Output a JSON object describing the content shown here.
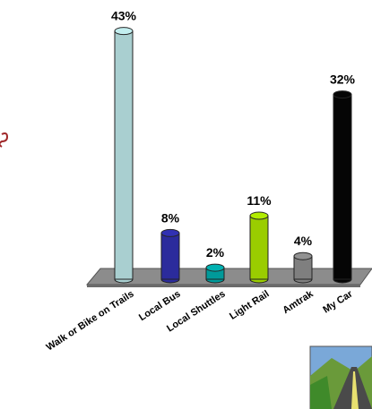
{
  "chart_data": {
    "type": "bar3d",
    "categories": [
      "Walk or Bike on Trails",
      "Local Bus",
      "Local Shuttles",
      "Light Rail",
      "Amtrak",
      "My Car"
    ],
    "values": [
      43,
      8,
      2,
      11,
      4,
      32
    ],
    "value_labels": [
      "43%",
      "8%",
      "2%",
      "11%",
      "4%",
      "32%"
    ],
    "colors": [
      "#a9cfd0",
      "#2b2b9c",
      "#009a9a",
      "#9acd00",
      "#7f7f7f",
      "#050505"
    ]
  }
}
